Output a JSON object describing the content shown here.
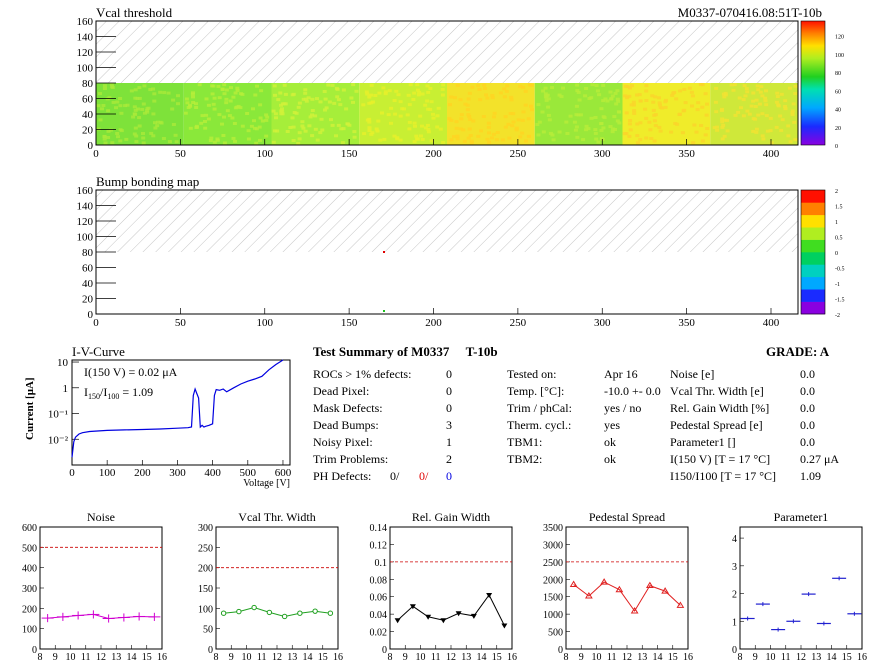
{
  "header": {
    "id": "M0337-070416.08:51T-10b"
  },
  "map1": {
    "title": "Vcal threshold",
    "x_ticks": [
      "0",
      "50",
      "100",
      "150",
      "200",
      "250",
      "300",
      "350",
      "400"
    ],
    "y_ticks": [
      "0",
      "20",
      "40",
      "60",
      "80",
      "100",
      "120",
      "140",
      "160"
    ],
    "z_ticks": [
      "0",
      "20",
      "40",
      "60",
      "80",
      "100",
      "120"
    ],
    "roc_colors": [
      "#7ee23a",
      "#8ae83a",
      "#a6ee3a",
      "#c8ef33",
      "#f3e22a",
      "#9ae83a",
      "#f0ec2a",
      "#cfe83a"
    ],
    "roc_alt_colors": [
      "#aaea3a",
      "#b6ee3a",
      "#d2f13a",
      "#e8f02a",
      "#ffd422",
      "#b8ec3a",
      "#fbd42a",
      "#f2e232"
    ]
  },
  "map2": {
    "title": "Bump bonding map",
    "x_ticks": [
      "0",
      "50",
      "100",
      "150",
      "200",
      "250",
      "300",
      "350",
      "400"
    ],
    "y_ticks": [
      "0",
      "20",
      "40",
      "60",
      "80",
      "100",
      "120",
      "140",
      "160"
    ],
    "z_ticks": [
      "-2",
      "-1.5",
      "-1",
      "-0.5",
      "0",
      "0.5",
      "1",
      "1.5",
      "2"
    ]
  },
  "iv": {
    "title": "I-V-Curve",
    "ylabel": "Current [μA]",
    "xlabel": "Voltage [V]",
    "note1": "I(150 V) = 0.02 μA",
    "note2a": "I",
    "note2b": "150",
    "note2c": "/I",
    "note2d": "100",
    "note2e": " =  1.09",
    "x_ticks": [
      "0",
      "100",
      "200",
      "300",
      "400",
      "500",
      "600"
    ],
    "y_ticks": [
      "10⁻²",
      "10⁻¹",
      "1",
      "10"
    ]
  },
  "summary": {
    "title": "Test Summary of M0337",
    "tag": "T-10b",
    "grade_label": "GRADE:  A",
    "left": [
      {
        "label": "ROCs > 1% defects:",
        "value": "0"
      },
      {
        "label": "Dead Pixel:",
        "value": "0"
      },
      {
        "label": "Mask Defects:",
        "value": "0"
      },
      {
        "label": "Dead Bumps:",
        "value": "3"
      },
      {
        "label": "Noisy Pixel:",
        "value": "1"
      },
      {
        "label": "Trim Problems:",
        "value": "2"
      }
    ],
    "ph_label": "PH Defects:",
    "ph_v1": "0/",
    "ph_v2": "0/",
    "ph_v3": "0",
    "mid": [
      {
        "label": "Tested on:",
        "value": "Apr 16"
      },
      {
        "label": "Temp. [°C]:",
        "value": "-10.0 +- 0.0"
      },
      {
        "label": "Trim / phCal:",
        "value": "yes / no"
      },
      {
        "label": "Therm. cycl.:",
        "value": "yes"
      },
      {
        "label": "TBM1:",
        "value": "ok"
      },
      {
        "label": "TBM2:",
        "value": "ok"
      }
    ],
    "right": [
      {
        "label": "Noise [e]",
        "value": "0.0"
      },
      {
        "label": "Vcal Thr. Width [e]",
        "value": "0.0"
      },
      {
        "label": "Rel. Gain Width [%]",
        "value": "0.0"
      },
      {
        "label": "Pedestal Spread [e]",
        "value": "0.0"
      },
      {
        "label": "Parameter1 []",
        "value": "0.0"
      },
      {
        "label": "I(150 V) [T = 17 °C]",
        "value": "0.27 μA"
      },
      {
        "label": "I150/I100  [T = 17 °C]",
        "value": "1.09"
      }
    ]
  },
  "colors": {
    "noise": "#d000d0",
    "vcal": "#20a020",
    "gain": "#000000",
    "pedestal": "#e02020",
    "param": "#2020d0",
    "limit": "#cc0000"
  },
  "chart_data": [
    {
      "type": "line",
      "title": "Noise",
      "x": [
        8.5,
        9.5,
        10.5,
        11.5,
        12.5,
        13.5,
        14.5,
        15.5
      ],
      "values": [
        152,
        158,
        165,
        170,
        150,
        155,
        160,
        158
      ],
      "errors": [
        20,
        20,
        20,
        20,
        20,
        20,
        20,
        20
      ],
      "limit": 500,
      "ylim": [
        0,
        600
      ],
      "xlim": [
        8,
        16
      ],
      "y_ticks": [
        0,
        100,
        200,
        300,
        400,
        500,
        600
      ]
    },
    {
      "type": "line",
      "title": "Vcal Thr. Width",
      "x": [
        8.5,
        9.5,
        10.5,
        11.5,
        12.5,
        13.5,
        14.5,
        15.5
      ],
      "values": [
        88,
        92,
        102,
        90,
        80,
        88,
        93,
        88
      ],
      "limit": 200,
      "ylim": [
        0,
        300
      ],
      "xlim": [
        8,
        16
      ],
      "y_ticks": [
        0,
        50,
        100,
        150,
        200,
        250,
        300
      ]
    },
    {
      "type": "line",
      "title": "Rel. Gain Width",
      "x": [
        8.5,
        9.5,
        10.5,
        11.5,
        12.5,
        13.5,
        14.5,
        15.5
      ],
      "values": [
        0.033,
        0.049,
        0.037,
        0.033,
        0.041,
        0.038,
        0.062,
        0.027
      ],
      "limit": 0.1,
      "ylim": [
        0,
        0.14
      ],
      "xlim": [
        8,
        16
      ],
      "y_ticks": [
        0,
        0.02,
        0.04,
        0.06,
        0.08,
        0.1,
        0.12,
        0.14
      ]
    },
    {
      "type": "line",
      "title": "Pedestal Spread",
      "x": [
        8.5,
        9.5,
        10.5,
        11.5,
        12.5,
        13.5,
        14.5,
        15.5
      ],
      "values": [
        1850,
        1520,
        1920,
        1700,
        1090,
        1820,
        1660,
        1250
      ],
      "limit": 2500,
      "ylim": [
        0,
        3500
      ],
      "xlim": [
        8,
        16
      ],
      "y_ticks": [
        0,
        500,
        1000,
        1500,
        2000,
        2500,
        3000,
        3500
      ]
    },
    {
      "type": "scatter",
      "title": "Parameter1",
      "x": [
        8.5,
        9.5,
        10.5,
        11.5,
        12.5,
        13.5,
        14.5,
        15.5
      ],
      "values": [
        1.1,
        1.62,
        0.7,
        1.0,
        1.98,
        0.92,
        2.55,
        1.27
      ],
      "ylim": [
        0,
        4.4
      ],
      "xlim": [
        8,
        16
      ],
      "y_ticks": [
        0,
        1,
        2,
        3,
        4
      ]
    },
    {
      "type": "line",
      "title": "I-V-Curve",
      "x": [
        0,
        5,
        10,
        20,
        30,
        50,
        100,
        150,
        200,
        250,
        300,
        330,
        340,
        345,
        350,
        355,
        360,
        365,
        370,
        375,
        380,
        390,
        400,
        405,
        410,
        420,
        430,
        440,
        460,
        480,
        500,
        520,
        540,
        560,
        580,
        600
      ],
      "values": [
        0.002,
        0.008,
        0.012,
        0.016,
        0.018,
        0.02,
        0.022,
        0.023,
        0.024,
        0.025,
        0.027,
        0.028,
        0.03,
        0.5,
        0.9,
        0.6,
        0.4,
        0.03,
        0.035,
        0.03,
        0.032,
        0.035,
        0.04,
        0.5,
        0.85,
        0.8,
        0.9,
        0.7,
        1.0,
        1.4,
        1.8,
        2.2,
        2.8,
        5,
        8,
        12
      ],
      "xlim": [
        0,
        620
      ],
      "ylim": [
        0.001,
        12
      ]
    }
  ]
}
